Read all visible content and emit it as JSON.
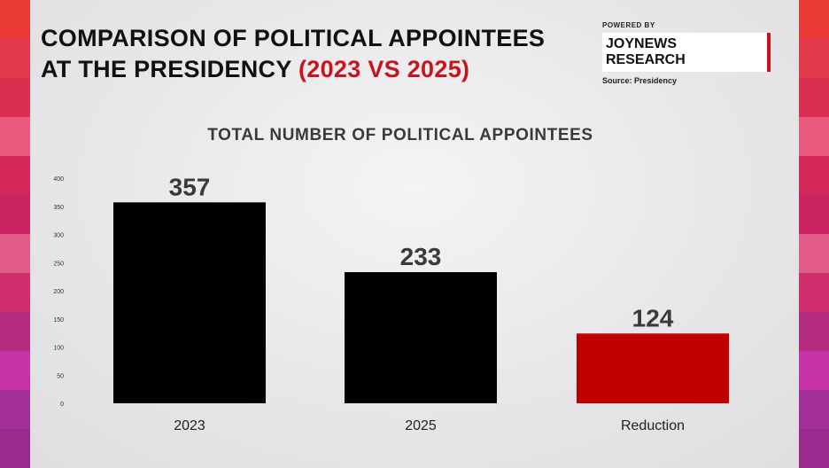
{
  "header": {
    "title_line1": "COMPARISON OF POLITICAL APPOINTEES",
    "title_line2": "AT THE PRESIDENCY",
    "title_accent": "(2023 VS 2025)"
  },
  "brand": {
    "powered_by": "POWERED BY",
    "name": "JOYNEWS RESEARCH",
    "source": "Source: Presidency"
  },
  "colors": {
    "accent": "#c8141e",
    "bar_default": "#000000",
    "bar_highlight": "#c00000",
    "side_strip": [
      "#ea3a35",
      "#e53a4c",
      "#dc2e50",
      "#ea5a7e",
      "#d22758",
      "#c82260",
      "#e25c8a",
      "#cf2f6c",
      "#b52c7e",
      "#c832a8",
      "#a52f9a",
      "#9a2a8e"
    ]
  },
  "chart_data": {
    "type": "bar",
    "title": "TOTAL NUMBER OF POLITICAL APPOINTEES",
    "categories": [
      "2023",
      "2025",
      "Reduction"
    ],
    "values": [
      357,
      233,
      124
    ],
    "data_labels": [
      "357",
      "233",
      "124"
    ],
    "highlight_index": 2,
    "ylim": [
      0,
      400
    ],
    "yticks": [
      0,
      50,
      100,
      150,
      200,
      250,
      300,
      350,
      400
    ],
    "xlabel": "",
    "ylabel": "",
    "grid": false,
    "legend": "none"
  }
}
